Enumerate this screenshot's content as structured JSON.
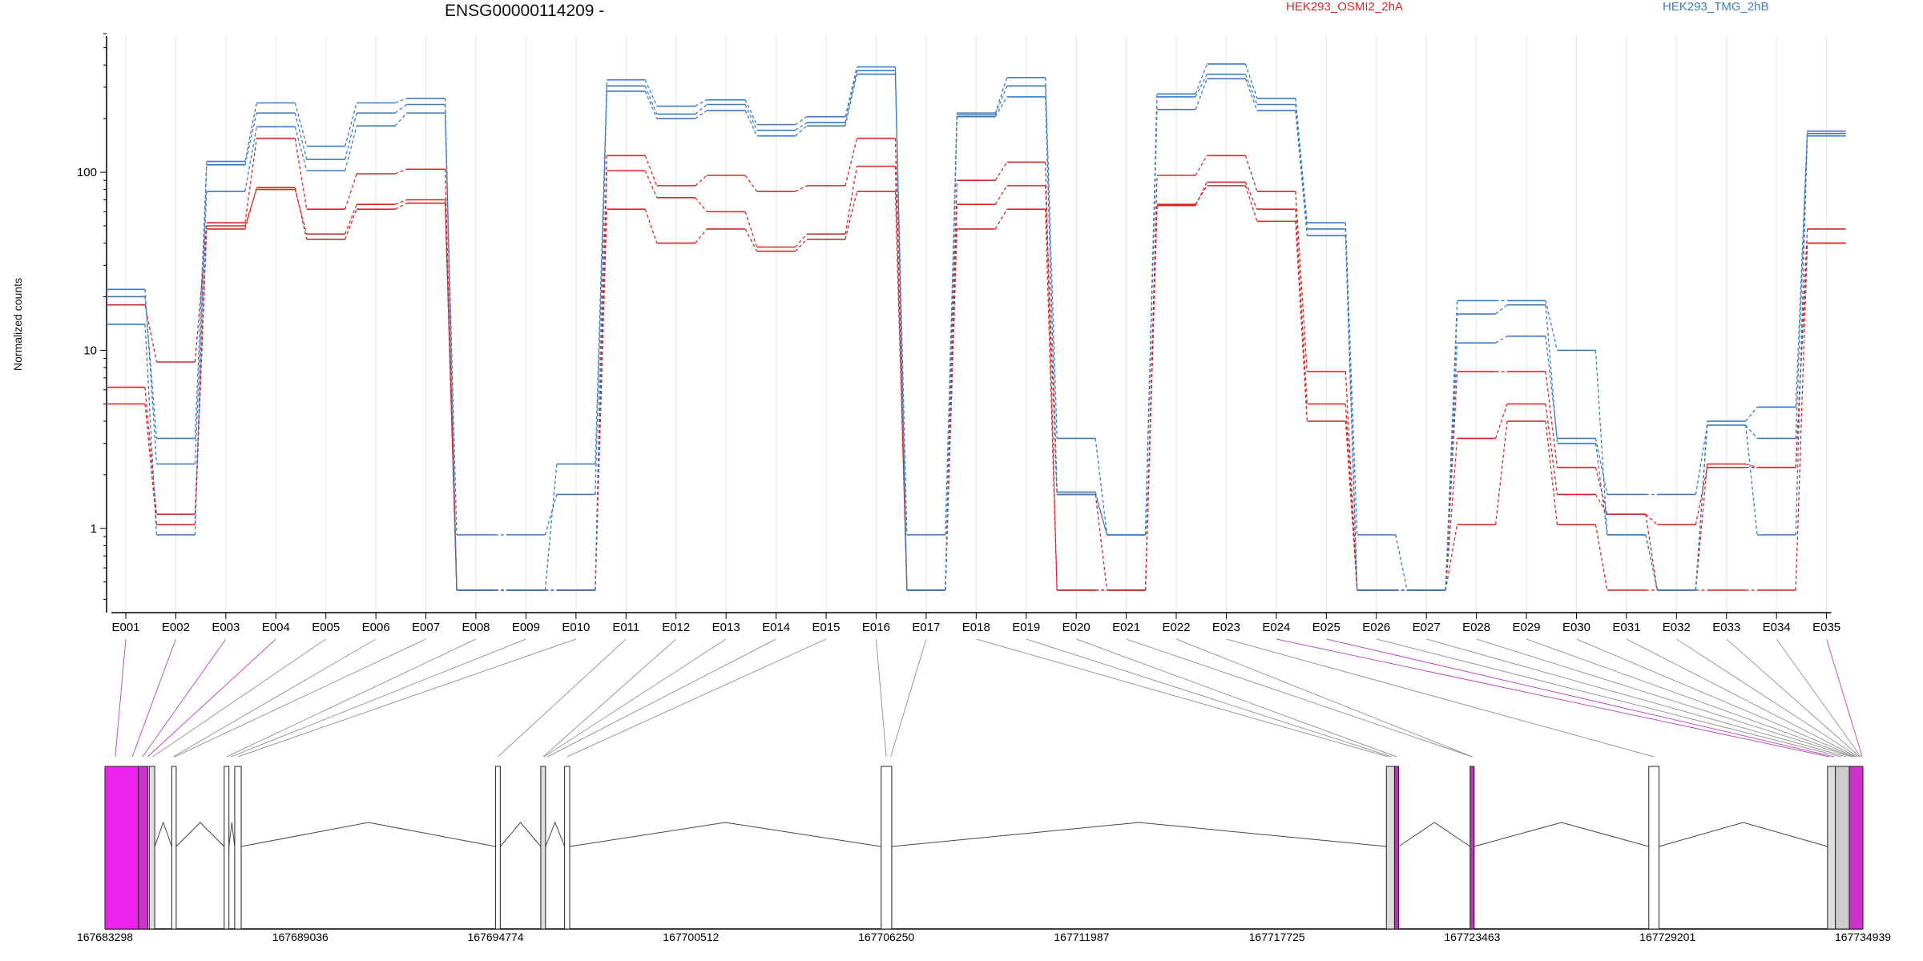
{
  "header": {
    "title": "ENSG00000114209 -",
    "ylabel": "Normalized counts"
  },
  "chart_data": {
    "type": "line",
    "scale": "log",
    "ylim": [
      0.4,
      600
    ],
    "yticks": [
      "1",
      "10",
      "100"
    ],
    "ytick_values": [
      1,
      10,
      100
    ],
    "categories": [
      "E001",
      "E002",
      "E003",
      "E004",
      "E005",
      "E006",
      "E007",
      "E008",
      "E009",
      "E010",
      "E011",
      "E012",
      "E013",
      "E014",
      "E015",
      "E016",
      "E017",
      "E018",
      "E019",
      "E020",
      "E021",
      "E022",
      "E023",
      "E024",
      "E025",
      "E026",
      "E027",
      "E028",
      "E029",
      "E030",
      "E031",
      "E032",
      "E033",
      "E034",
      "E035"
    ],
    "legend": [
      {
        "label": "HEK293_OSMI2_2hA",
        "color": "#d62728"
      },
      {
        "label": "HEK293_TMG_2hB",
        "color": "#3d7bc0"
      }
    ],
    "series": [
      {
        "group": "red",
        "values": [
          5,
          1.05,
          48,
          82,
          42,
          62,
          67,
          0.45,
          0.45,
          0.45,
          62,
          40,
          48,
          36,
          42,
          78,
          0.45,
          48,
          62,
          0.45,
          0.45,
          66,
          84,
          53,
          4,
          0.45,
          0.45,
          1.05,
          4,
          1.05,
          0.45,
          0.45,
          0.45,
          0.45,
          40
        ]
      },
      {
        "group": "red",
        "values": [
          6.2,
          1.2,
          52,
          155,
          62,
          98,
          104,
          0.45,
          0.45,
          0.45,
          124,
          84,
          96,
          78,
          84,
          155,
          0.45,
          90,
          114,
          0.45,
          0.45,
          96,
          124,
          78,
          7.6,
          0.45,
          0.45,
          7.6,
          7.6,
          2.2,
          1.2,
          1.05,
          2.2,
          2.2,
          48
        ]
      },
      {
        "group": "red",
        "values": [
          18,
          8.6,
          50,
          80,
          45,
          66,
          70,
          0.45,
          0.45,
          0.45,
          102,
          72,
          60,
          38,
          45,
          108,
          0.45,
          66,
          84,
          1.55,
          0.45,
          65,
          88,
          62,
          5,
          0.45,
          0.45,
          3.2,
          5,
          1.55,
          1.2,
          0.45,
          2.3,
          2.2,
          40
        ]
      },
      {
        "group": "blue",
        "values": [
          22,
          2.3,
          78,
          180,
          102,
          182,
          215,
          0.92,
          0.92,
          1.55,
          285,
          200,
          222,
          160,
          182,
          355,
          0.92,
          205,
          265,
          1.6,
          0.92,
          225,
          335,
          222,
          44,
          0.45,
          0.45,
          11,
          12,
          3.2,
          1.55,
          1.55,
          3.8,
          0.92,
          160
        ]
      },
      {
        "group": "blue",
        "values": [
          14,
          0.92,
          115,
          245,
          140,
          245,
          260,
          0.45,
          0.45,
          0.45,
          330,
          235,
          255,
          185,
          205,
          390,
          0.45,
          215,
          340,
          3.2,
          0.92,
          275,
          405,
          260,
          52,
          0.92,
          0.45,
          19,
          19,
          10,
          0.92,
          0.45,
          4,
          4.8,
          170
        ]
      },
      {
        "group": "blue",
        "values": [
          20,
          3.2,
          110,
          215,
          118,
          215,
          240,
          0.45,
          0.45,
          2.3,
          305,
          212,
          240,
          172,
          190,
          372,
          0.45,
          210,
          305,
          1.55,
          0.92,
          265,
          355,
          240,
          48,
          0.45,
          0.45,
          16,
          18,
          3,
          0.92,
          0.45,
          3.8,
          3.2,
          165
        ]
      }
    ],
    "coord_ticks": [
      "167683298",
      "167689036",
      "167694774",
      "167700512",
      "167706250",
      "167711987",
      "167717725",
      "167723463",
      "167729201",
      "167734939"
    ],
    "coord_range": [
      167683298,
      167734939
    ],
    "exons": [
      {
        "start": 167683298,
        "end": 167684280,
        "fill": "#ee22ee"
      },
      {
        "start": 167684280,
        "end": 167684560,
        "fill": "#cc33cc"
      },
      {
        "start": 167684600,
        "end": 167684760,
        "fill": "#dddddd"
      },
      {
        "start": 167685260,
        "end": 167685390,
        "fill": "#ffffff"
      },
      {
        "start": 167686800,
        "end": 167686940,
        "fill": "#ffffff"
      },
      {
        "start": 167687110,
        "end": 167687300,
        "fill": "#ffffff"
      },
      {
        "start": 167694770,
        "end": 167694910,
        "fill": "#ffffff"
      },
      {
        "start": 167696100,
        "end": 167696240,
        "fill": "#dddddd"
      },
      {
        "start": 167696800,
        "end": 167696950,
        "fill": "#ffffff"
      },
      {
        "start": 167706100,
        "end": 167706410,
        "fill": "#ffffff"
      },
      {
        "start": 167720940,
        "end": 167721180,
        "fill": "#dddddd"
      },
      {
        "start": 167721180,
        "end": 167721300,
        "fill": "#bb33bb"
      },
      {
        "start": 167723400,
        "end": 167723520,
        "fill": "#bb33bb"
      },
      {
        "start": 167728650,
        "end": 167728950,
        "fill": "#ffffff"
      },
      {
        "start": 167733900,
        "end": 167734130,
        "fill": "#dddddd"
      },
      {
        "start": 167734130,
        "end": 167734540,
        "fill": "#cccccc"
      },
      {
        "start": 167734540,
        "end": 167734939,
        "fill": "#cc33cc"
      }
    ]
  }
}
